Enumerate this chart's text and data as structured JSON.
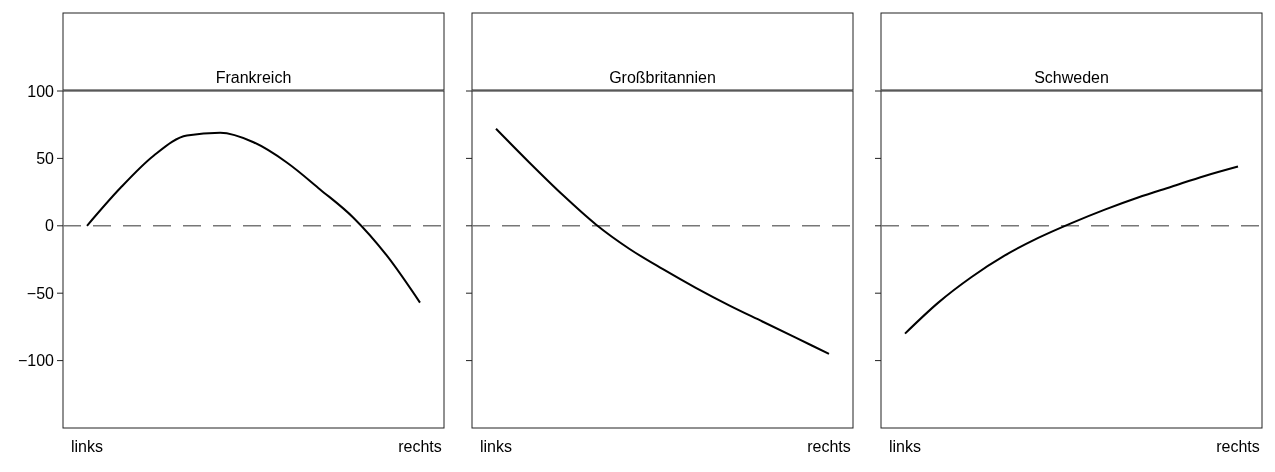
{
  "chart_data": [
    {
      "type": "line",
      "title": "Frankreich",
      "categories": [
        "links",
        null,
        null,
        null,
        null,
        null,
        null,
        null,
        null,
        null,
        "rechts"
      ],
      "values": [
        0,
        28,
        52,
        67,
        69,
        62,
        47,
        27,
        6,
        -22,
        -57
      ],
      "color": "#000000",
      "ylim": [
        -150,
        100
      ],
      "yticks": [
        -100,
        -50,
        0,
        50,
        100
      ],
      "ref_lines": [
        {
          "axis": "y",
          "value": 0,
          "color": "#777777",
          "line_style": "dashed"
        }
      ]
    },
    {
      "type": "line",
      "title": "Großbritannien",
      "categories": [
        "links",
        null,
        null,
        null,
        null,
        null,
        null,
        null,
        null,
        null,
        "rechts"
      ],
      "values": [
        72,
        47,
        23,
        1,
        -17,
        -32,
        -46,
        -59,
        -71,
        -83,
        -95
      ],
      "color": "#000000",
      "ylim": [
        -150,
        100
      ],
      "yticks": [
        {
          "value": -100,
          "label": null
        },
        {
          "value": -50,
          "label": null
        },
        {
          "value": 0,
          "label": null
        },
        {
          "value": 50,
          "label": null
        },
        {
          "value": 100,
          "label": null
        }
      ],
      "tick_labels": "x",
      "ref_lines": [
        {
          "axis": "y",
          "value": 0,
          "color": "#777777",
          "line_style": "dashed"
        }
      ]
    },
    {
      "type": "line",
      "title": "Schweden",
      "categories": [
        "links",
        null,
        null,
        null,
        null,
        null,
        null,
        null,
        null,
        null,
        "rechts"
      ],
      "values": [
        -80,
        -57,
        -38,
        -22,
        -9,
        2,
        12,
        21,
        29,
        37,
        44
      ],
      "color": "#000000",
      "ylim": [
        -150,
        100
      ],
      "yticks": [
        {
          "value": -100,
          "label": null
        },
        {
          "value": -50,
          "label": null
        },
        {
          "value": 0,
          "label": null
        },
        {
          "value": 50,
          "label": null
        },
        {
          "value": 100,
          "label": null
        }
      ],
      "tick_labels": "x",
      "ref_lines": [
        {
          "axis": "y",
          "value": 0,
          "color": "#777777",
          "line_style": "dashed"
        }
      ]
    }
  ]
}
